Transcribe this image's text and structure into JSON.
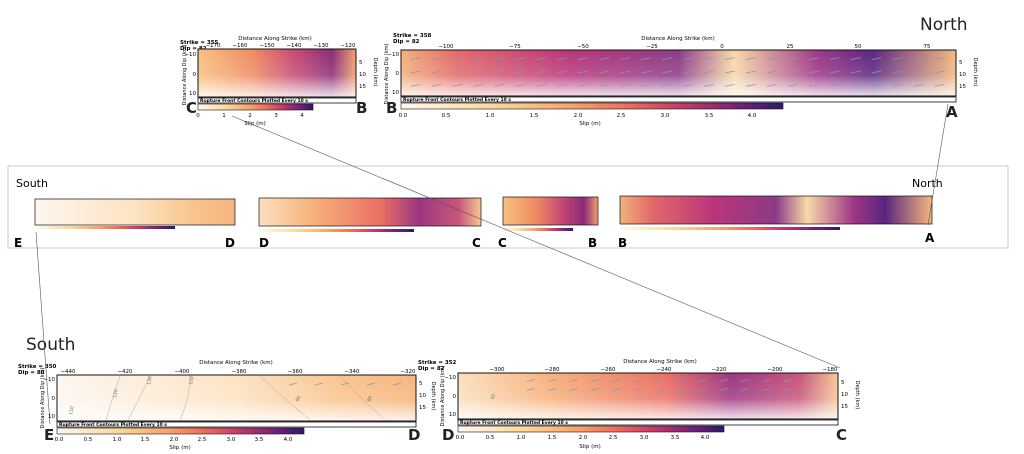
{
  "direction_labels": {
    "north": "North",
    "south": "South"
  },
  "common": {
    "distance_along_strike": "Distance Along Strike (km)",
    "distance_along_dip": "Distance Along Dip (km)",
    "depth": "Depth (km)",
    "rupture_front": "Rupture Front Contours Plotted Every 10 s",
    "slip": "Slip (m)"
  },
  "colors": {
    "slip_low": "#fff9f0",
    "slip_mid": "#f2815a",
    "slip_high": "#2b1a6e",
    "arrow": "#7f9bb5"
  },
  "panels": {
    "top_cb": {
      "strike": "Strike = 355",
      "dip": "Dip = 82",
      "x_ticks": [
        "−170",
        "−160",
        "−150",
        "−140",
        "−130",
        "−120"
      ],
      "dip_ticks": [
        "−10",
        "0",
        "10"
      ],
      "depth_ticks": [
        "5",
        "10",
        "15"
      ],
      "cbar_ticks": [
        "0",
        "1",
        "2",
        "3",
        "4"
      ],
      "end_left": "C",
      "end_right": "B"
    },
    "top_ba": {
      "strike": "Strike = 358",
      "dip": "Dip = 82",
      "x_ticks": [
        "−100",
        "−75",
        "−50",
        "−25",
        "0",
        "25",
        "50",
        "75"
      ],
      "dip_ticks": [
        "−10",
        "0",
        "10"
      ],
      "depth_ticks": [
        "5",
        "10",
        "15"
      ],
      "cbar_ticks": [
        "0.0",
        "0.5",
        "1.0",
        "1.5",
        "2.0",
        "2.5",
        "3.0",
        "3.5",
        "4.0"
      ],
      "end_left": "B",
      "end_right": "A"
    },
    "bot_ed": {
      "strike": "Strike = 350",
      "dip": "Dip = 80",
      "x_ticks": [
        "−440",
        "−420",
        "−400",
        "−380",
        "−360",
        "−340",
        "−320"
      ],
      "dip_ticks": [
        "−10",
        "0",
        "10"
      ],
      "depth_ticks": [
        "5",
        "10",
        "15"
      ],
      "cbar_ticks": [
        "0.0",
        "0.5",
        "1.0",
        "1.5",
        "2.0",
        "2.5",
        "3.0",
        "3.5",
        "4.0"
      ],
      "contours": [
        "120",
        "130",
        "110",
        "100",
        "90",
        "80"
      ],
      "end_left": "E",
      "end_right": "D"
    },
    "bot_dc": {
      "strike": "Strike = 352",
      "dip": "Dip = 82",
      "x_ticks": [
        "−300",
        "−280",
        "−260",
        "−240",
        "−220",
        "−200",
        "−180"
      ],
      "dip_ticks": [
        "−10",
        "0",
        "10"
      ],
      "depth_ticks": [
        "5",
        "10",
        "15"
      ],
      "cbar_ticks": [
        "0.0",
        "0.5",
        "1.0",
        "1.5",
        "2.0",
        "2.5",
        "3.0",
        "3.5",
        "4.0"
      ],
      "contours": [
        "70"
      ],
      "end_left": "D",
      "end_right": "C"
    }
  },
  "mid_ends": {
    "e": "E",
    "d1": "D",
    "d2": "D",
    "c1": "C",
    "c2": "C",
    "b1": "B",
    "b2": "B",
    "a": "A"
  }
}
